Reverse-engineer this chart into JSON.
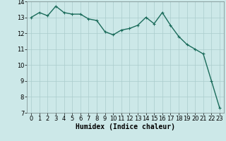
{
  "x": [
    0,
    1,
    2,
    3,
    4,
    5,
    6,
    7,
    8,
    9,
    10,
    11,
    12,
    13,
    14,
    15,
    16,
    17,
    18,
    19,
    20,
    21,
    22,
    23
  ],
  "y": [
    13.0,
    13.3,
    13.1,
    13.7,
    13.3,
    13.2,
    13.2,
    12.9,
    12.8,
    12.1,
    11.9,
    12.2,
    12.3,
    12.5,
    13.0,
    12.6,
    13.3,
    12.5,
    11.8,
    11.3,
    11.0,
    10.7,
    9.0,
    7.3
  ],
  "line_color": "#1a6b5a",
  "marker": "+",
  "marker_size": 3,
  "bg_color": "#cce8e8",
  "grid_color": "#aacccc",
  "xlabel": "Humidex (Indice chaleur)",
  "ylabel": "",
  "xlim": [
    -0.5,
    23.5
  ],
  "ylim": [
    7,
    14
  ],
  "yticks": [
    7,
    8,
    9,
    10,
    11,
    12,
    13,
    14
  ],
  "xticks": [
    0,
    1,
    2,
    3,
    4,
    5,
    6,
    7,
    8,
    9,
    10,
    11,
    12,
    13,
    14,
    15,
    16,
    17,
    18,
    19,
    20,
    21,
    22,
    23
  ],
  "xlabel_fontsize": 7,
  "tick_fontsize": 6,
  "linewidth": 1.0
}
